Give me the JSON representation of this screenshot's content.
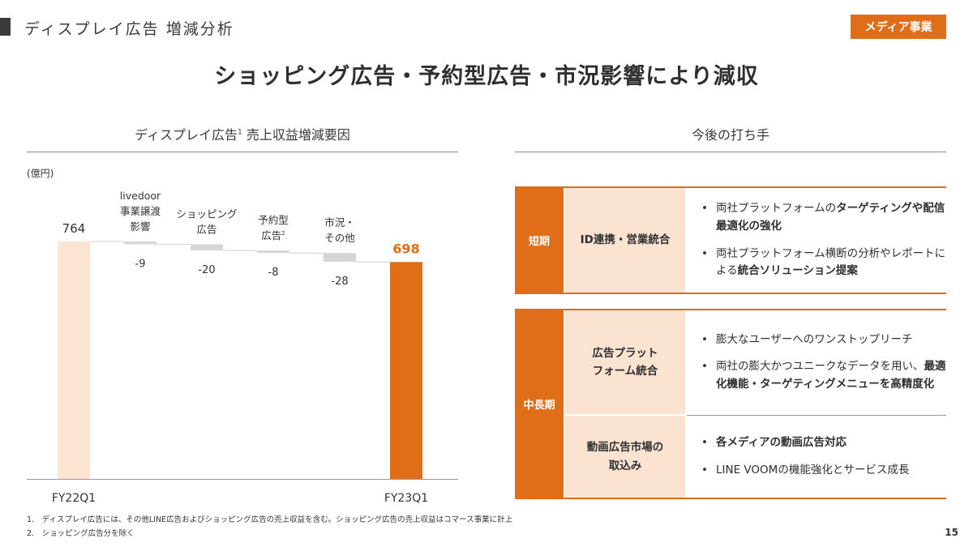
{
  "header": {
    "section_title": "ディスプレイ広告 増減分析",
    "badge": "メディア事業",
    "headline": "ショッピング広告・予約型広告・市況影響により減収"
  },
  "left_panel": {
    "title_main": "ディスプレイ広告",
    "title_sup": "1",
    "title_rest": " 売上収益増減要因",
    "unit": "(億円)"
  },
  "chart_data": {
    "type": "bar",
    "subtype": "waterfall",
    "categories": [
      "FY22Q1",
      "livedoor事業譲渡影響",
      "ショッピング広告",
      "予約型広告",
      "市況・その他",
      "FY23Q1"
    ],
    "category_labels": [
      [
        "FY22Q1"
      ],
      [
        "livedoor",
        "事業譲渡",
        "影響"
      ],
      [
        "ショッピング",
        "広告"
      ],
      [
        "予約型",
        "広告"
      ],
      [
        "市況・",
        "その他"
      ],
      [
        "FY23Q1"
      ]
    ],
    "label_sup": [
      "",
      "",
      "",
      "2",
      "",
      ""
    ],
    "values": [
      764,
      -9,
      -20,
      -8,
      -28,
      698
    ],
    "value_labels": [
      "764",
      "-9",
      "-20",
      "-8",
      "-28",
      "698"
    ],
    "kinds": [
      "total",
      "delta",
      "delta",
      "delta",
      "delta",
      "total"
    ],
    "ylim": [
      0,
      764
    ],
    "grid": false,
    "legend": "none",
    "colors": {
      "start": "#fce4d3",
      "delta": "#d6d6d6",
      "end": "#e06e18",
      "end_label": "#e06e18"
    }
  },
  "right_panel": {
    "title": "今後の打ち手",
    "short_term": {
      "label": "短期",
      "topic": "ID連携・営業統合",
      "bullets": [
        {
          "pre": "両社プラットフォームの",
          "bold": "ターゲティングや配信最適化の強化",
          "post": ""
        },
        {
          "pre": "両社プラットフォーム横断の分析やレポートによる",
          "bold": "統合ソリューション提案",
          "post": ""
        }
      ]
    },
    "mid_long_term": {
      "label": "中長期",
      "rows": [
        {
          "topic": "広告プラット\nフォーム統合",
          "bullets": [
            {
              "pre": "膨大なユーザーへのワンストップリーチ",
              "bold": "",
              "post": ""
            },
            {
              "pre": "両社の膨大かつユニークなデータを用い、",
              "bold": "最適化機能・ターゲティングメニューを高精度化",
              "post": ""
            }
          ]
        },
        {
          "topic": "動画広告市場の\n取込み",
          "bullets": [
            {
              "pre": "",
              "bold": "各メディアの動画広告対応",
              "post": ""
            },
            {
              "pre": "LINE VOOMの機能強化とサービス成長",
              "bold": "",
              "post": ""
            }
          ]
        }
      ]
    }
  },
  "footnotes": [
    "1.　ディスプレイ広告には、その他LINE広告およびショッピング広告の売上収益を含む。ショッピング広告の売上収益はコマース事業に計上",
    "2.　ショッピング広告分を除く"
  ],
  "page_number": "15"
}
